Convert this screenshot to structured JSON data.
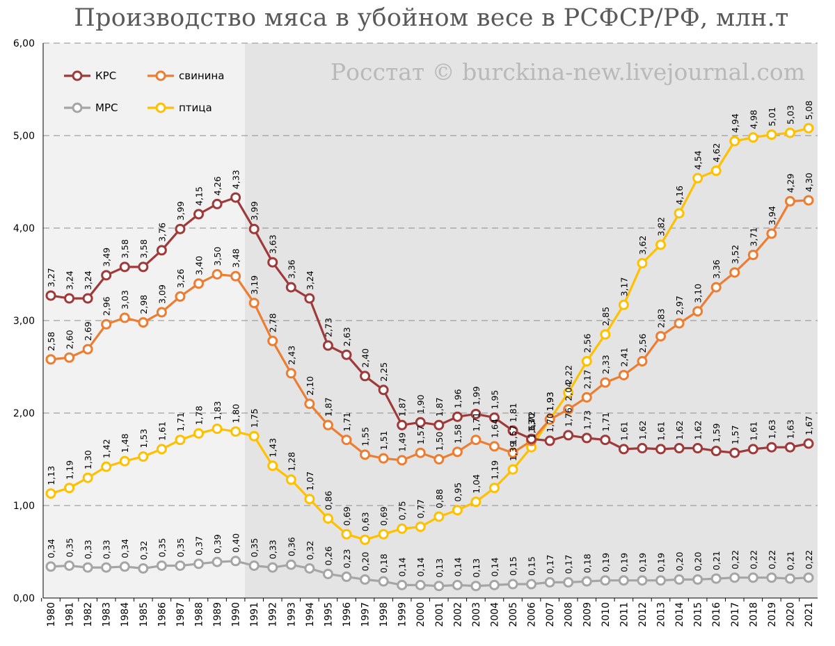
{
  "chart_data": {
    "type": "line",
    "title": "Производство мяса в убойном весе в РСФСР/РФ, млн.т",
    "watermark": "Росстат © burckina-new.livejournal.com",
    "xlabel": "",
    "ylabel": "",
    "ylim": [
      0,
      6
    ],
    "yticks": [
      "0,00",
      "1,00",
      "2,00",
      "3,00",
      "4,00",
      "5,00",
      "6,00"
    ],
    "grid": "horizontal dashed",
    "legend_position": "top-left",
    "shaded_region_from": "1991",
    "x": [
      "1980",
      "1981",
      "1982",
      "1983",
      "1984",
      "1985",
      "1986",
      "1987",
      "1988",
      "1989",
      "1990",
      "1991",
      "1992",
      "1993",
      "1994",
      "1995",
      "1996",
      "1997",
      "1998",
      "1999",
      "2000",
      "2001",
      "2002",
      "2003",
      "2004",
      "2005",
      "2006",
      "2007",
      "2008",
      "2009",
      "2010",
      "2011",
      "2012",
      "2013",
      "2014",
      "2015",
      "2016",
      "2017",
      "2018",
      "2019",
      "2020",
      "2021"
    ],
    "series": [
      {
        "name": "КРС",
        "color": "#9e3a3a",
        "values": [
          3.27,
          3.24,
          3.24,
          3.49,
          3.58,
          3.58,
          3.76,
          3.99,
          4.15,
          4.26,
          4.33,
          3.99,
          3.63,
          3.36,
          3.24,
          2.73,
          2.63,
          2.4,
          2.25,
          1.87,
          1.9,
          1.87,
          1.96,
          1.99,
          1.95,
          1.81,
          1.72,
          1.7,
          1.76,
          1.73,
          1.71,
          1.61,
          1.62,
          1.61,
          1.62,
          1.62,
          1.59,
          1.57,
          1.61,
          1.63,
          1.63,
          1.67
        ],
        "labels": [
          "3,27",
          "3,24",
          "3,24",
          "3,49",
          "3,58",
          "3,58",
          "3,76",
          "3,99",
          "4,15",
          "4,26",
          "4,33",
          "3,99",
          "3,63",
          "3,36",
          "3,24",
          "2,73",
          "2,63",
          "2,40",
          "2,25",
          "1,87",
          "1,90",
          "1,87",
          "1,96",
          "1,99",
          "1,95",
          "1,81",
          "1,72",
          "1,70",
          "1,76",
          "1,73",
          "1,71",
          "1,61",
          "1,62",
          "1,61",
          "1,62",
          "1,62",
          "1,59",
          "1,57",
          "1,61",
          "1,63",
          "1,63",
          "1,67"
        ]
      },
      {
        "name": "свинина",
        "color": "#ec7d31",
        "values": [
          2.58,
          2.6,
          2.69,
          2.96,
          3.03,
          2.98,
          3.09,
          3.26,
          3.4,
          3.5,
          3.48,
          3.19,
          2.78,
          2.43,
          2.1,
          1.87,
          1.71,
          1.55,
          1.51,
          1.49,
          1.57,
          1.5,
          1.58,
          1.71,
          1.64,
          1.57,
          1.7,
          1.93,
          2.04,
          2.17,
          2.33,
          2.41,
          2.56,
          2.83,
          2.97,
          3.1,
          3.36,
          3.52,
          3.71,
          3.94,
          4.29,
          4.3
        ],
        "labels": [
          "2,58",
          "2,60",
          "2,69",
          "2,96",
          "3,03",
          "2,98",
          "3,09",
          "3,26",
          "3,40",
          "3,50",
          "3,48",
          "3,19",
          "2,78",
          "2,43",
          "2,10",
          "1,87",
          "1,71",
          "1,55",
          "1,51",
          "1,49",
          "1,57",
          "1,50",
          "1,58",
          "1,71",
          "1,64",
          "1,57",
          "1,70",
          "1,93",
          "2,04",
          "2,17",
          "2,33",
          "2,41",
          "2,56",
          "2,83",
          "2,97",
          "3,10",
          "3,36",
          "3,52",
          "3,71",
          "3,94",
          "4,29",
          "4,30"
        ]
      },
      {
        "name": "МРС",
        "color": "#a5a5a5",
        "values": [
          0.34,
          0.35,
          0.33,
          0.33,
          0.34,
          0.32,
          0.35,
          0.35,
          0.37,
          0.39,
          0.4,
          0.35,
          0.33,
          0.36,
          0.32,
          0.26,
          0.23,
          0.2,
          0.18,
          0.14,
          0.14,
          0.13,
          0.14,
          0.13,
          0.14,
          0.15,
          0.15,
          0.17,
          0.17,
          0.18,
          0.19,
          0.19,
          0.19,
          0.19,
          0.2,
          0.2,
          0.21,
          0.22,
          0.22,
          0.22,
          0.21,
          0.22
        ],
        "labels": [
          "0,34",
          "0,35",
          "0,33",
          "0,33",
          "0,34",
          "0,32",
          "0,35",
          "0,35",
          "0,37",
          "0,39",
          "0,40",
          "0,35",
          "0,33",
          "0,36",
          "0,32",
          "0,26",
          "0,23",
          "0,20",
          "0,18",
          "0,14",
          "0,14",
          "0,13",
          "0,14",
          "0,13",
          "0,14",
          "0,15",
          "0,15",
          "0,17",
          "0,17",
          "0,18",
          "0,19",
          "0,19",
          "0,19",
          "0,19",
          "0,20",
          "0,20",
          "0,21",
          "0,22",
          "0,22",
          "0,22",
          "0,21",
          "0,22"
        ]
      },
      {
        "name": "птица",
        "color": "#ffc000",
        "values": [
          1.13,
          1.19,
          1.3,
          1.42,
          1.48,
          1.53,
          1.61,
          1.71,
          1.78,
          1.83,
          1.8,
          1.75,
          1.43,
          1.28,
          1.07,
          0.86,
          0.69,
          0.63,
          0.69,
          0.75,
          0.77,
          0.88,
          0.95,
          1.04,
          1.19,
          1.39,
          1.63,
          1.93,
          2.22,
          2.56,
          2.85,
          3.17,
          3.62,
          3.82,
          4.16,
          4.54,
          4.62,
          4.94,
          4.98,
          5.01,
          5.03,
          5.08
        ],
        "labels": [
          "1,13",
          "1,19",
          "1,30",
          "1,42",
          "1,48",
          "1,53",
          "1,61",
          "1,71",
          "1,78",
          "1,83",
          "1,80",
          "1,75",
          "1,43",
          "1,28",
          "1,07",
          "0,86",
          "0,69",
          "0,63",
          "0,69",
          "0,75",
          "0,77",
          "0,88",
          "0,95",
          "1,04",
          "1,19",
          "1,39",
          "1,63",
          "1,93",
          "2,22",
          "2,56",
          "2,85",
          "3,17",
          "3,62",
          "3,82",
          "4,16",
          "4,54",
          "4,62",
          "4,94",
          "4,98",
          "5,01",
          "5,03",
          "5,08"
        ]
      }
    ]
  }
}
